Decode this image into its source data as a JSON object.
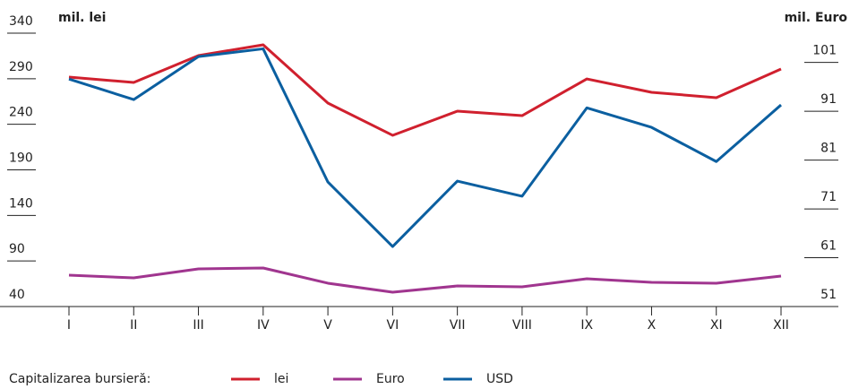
{
  "chart_data": {
    "type": "line",
    "ylabel": "mil. lei",
    "y2label": "mil. Euro",
    "legend_title": "Capitalizarea bursieră:",
    "legend": "bottom",
    "categories": [
      "I",
      "II",
      "III",
      "IV",
      "V",
      "VI",
      "VII",
      "VIII",
      "IX",
      "X",
      "XI",
      "XII"
    ],
    "series": [
      {
        "name": "lei",
        "color": "#d0202e",
        "values": [
          291.8,
          285.9,
          315.4,
          327.2,
          263.3,
          227.9,
          254.4,
          249.5,
          289.8,
          275.1,
          269.2,
          300.6
        ]
      },
      {
        "name": "Euro",
        "color": "#a0358f",
        "values": [
          74.4,
          71.5,
          81.3,
          82.3,
          65.6,
          55.7,
          62.6,
          61.6,
          70.5,
          66.6,
          65.6,
          73.4
        ]
      },
      {
        "name": "USD",
        "color": "#0b5fa0",
        "axis": "y2",
        "values": [
          97.6,
          93.4,
          102.2,
          103.8,
          76.5,
          63.3,
          76.7,
          73.6,
          91.7,
          87.7,
          80.7,
          92.3
        ]
      }
    ],
    "ylim": [
      40,
      340
    ],
    "yticks": [
      40,
      90,
      140,
      190,
      240,
      290,
      340
    ],
    "y2lim": [
      51,
      107
    ],
    "y2ticks": [
      51,
      61,
      71,
      81,
      91,
      101
    ]
  }
}
